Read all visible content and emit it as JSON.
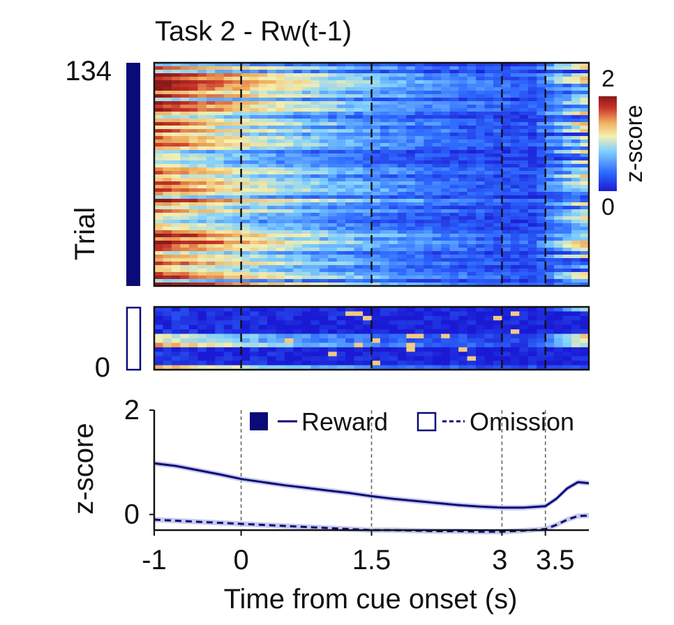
{
  "title": "Task 2 - Rw(t-1)",
  "colors": {
    "reward": "#0a0a78",
    "omission": "#0a0a78",
    "band": "#b9bde6",
    "colormap": [
      "#1a1ad4",
      "#2f6bff",
      "#7fd0ff",
      "#f5f0b0",
      "#f0b060",
      "#c8322a",
      "#8a1a1a"
    ]
  },
  "chart_data": [
    {
      "type": "heatmap",
      "panel": "reward-trials",
      "ylabel": "Trial",
      "ytick_top": "134",
      "trials_shown": 64,
      "xlim": [
        -1,
        4
      ],
      "event_lines": [
        0,
        1.5,
        3,
        3.5
      ],
      "colorbar": {
        "label": "z-score",
        "min": 0,
        "max": 2,
        "ticks": [
          "2",
          "0"
        ]
      },
      "grid": false
    },
    {
      "type": "heatmap",
      "panel": "omission-trials",
      "ytick_bottom": "0",
      "trials_shown": 14,
      "xlim": [
        -1,
        4
      ],
      "event_lines": [
        0,
        1.5,
        3,
        3.5
      ],
      "grid": false
    },
    {
      "type": "line",
      "panel": "average",
      "ylabel": "z-score",
      "xlabel": "Time from cue onset (s)",
      "xlim": [
        -1,
        4
      ],
      "ylim": [
        -0.3,
        2
      ],
      "xticks": [
        "-1",
        "0",
        "1.5",
        "3",
        "3.5"
      ],
      "yticks": [
        "2",
        "0"
      ],
      "event_lines": [
        0,
        1.5,
        3,
        3.5
      ],
      "legend_position": "top-right",
      "x": [
        -1.0,
        -0.75,
        -0.5,
        -0.25,
        0.0,
        0.25,
        0.5,
        0.75,
        1.0,
        1.25,
        1.5,
        1.75,
        2.0,
        2.25,
        2.5,
        2.75,
        3.0,
        3.25,
        3.5,
        3.625,
        3.75,
        3.875,
        4.0
      ],
      "series": [
        {
          "name": "Reward",
          "style": "solid",
          "values": [
            0.98,
            0.93,
            0.85,
            0.77,
            0.68,
            0.62,
            0.56,
            0.51,
            0.46,
            0.41,
            0.35,
            0.3,
            0.26,
            0.22,
            0.18,
            0.15,
            0.13,
            0.13,
            0.16,
            0.3,
            0.5,
            0.62,
            0.6
          ]
        },
        {
          "name": "Omission",
          "style": "dashed",
          "values": [
            -0.1,
            -0.12,
            -0.14,
            -0.16,
            -0.18,
            -0.2,
            -0.22,
            -0.24,
            -0.26,
            -0.28,
            -0.3,
            -0.3,
            -0.31,
            -0.32,
            -0.32,
            -0.33,
            -0.33,
            -0.31,
            -0.28,
            -0.2,
            -0.1,
            -0.03,
            -0.02
          ]
        }
      ]
    }
  ]
}
